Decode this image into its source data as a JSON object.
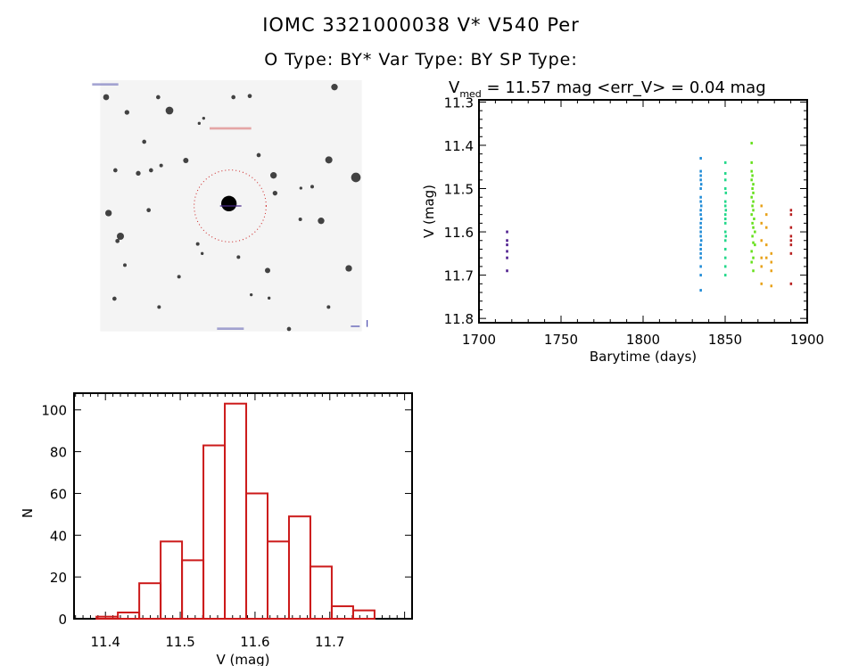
{
  "header": {
    "title": "IOMC 3321000038    V* V540 Per",
    "subtitle": "O Type: BY*  Var Type: BY  SP Type:"
  },
  "image_panel": {
    "target_marker_color": "#cc2222"
  },
  "chart_data": [
    {
      "type": "scatter",
      "title_prefix": "V",
      "title_sub": "med",
      "title_rest": " = 11.57 mag <err_V> = 0.04 mag",
      "xlabel": "Barytime (days)",
      "ylabel": "V (mag)",
      "xlim": [
        1700,
        1900
      ],
      "ylim": [
        11.81,
        11.295
      ],
      "y_inverted": true,
      "xticks": [
        1700,
        1750,
        1800,
        1850,
        1900
      ],
      "yticks": [
        11.3,
        11.4,
        11.5,
        11.6,
        11.7,
        11.8
      ],
      "xtick_labels": [
        "1700",
        "1750",
        "1800",
        "1850",
        "1900"
      ],
      "ytick_labels": [
        "11.3",
        "11.4",
        "11.5",
        "11.6",
        "11.7",
        "11.8"
      ],
      "grid": false,
      "series": [
        {
          "color": "#4b1a8c",
          "points": [
            [
              1717,
              11.6
            ],
            [
              1717,
              11.62
            ],
            [
              1717,
              11.63
            ],
            [
              1717,
              11.645
            ],
            [
              1717,
              11.66
            ],
            [
              1717,
              11.69
            ]
          ]
        },
        {
          "color": "#1e8ad6",
          "points": [
            [
              1835,
              11.43
            ],
            [
              1835,
              11.46
            ],
            [
              1835,
              11.47
            ],
            [
              1835,
              11.48
            ],
            [
              1835.3,
              11.49
            ],
            [
              1835,
              11.5
            ],
            [
              1835,
              11.52
            ],
            [
              1835,
              11.53
            ],
            [
              1835.3,
              11.54
            ],
            [
              1835,
              11.55
            ],
            [
              1835,
              11.56
            ],
            [
              1835.3,
              11.57
            ],
            [
              1835,
              11.58
            ],
            [
              1835,
              11.59
            ],
            [
              1835,
              11.6
            ],
            [
              1835,
              11.61
            ],
            [
              1835.3,
              11.62
            ],
            [
              1835,
              11.63
            ],
            [
              1835,
              11.64
            ],
            [
              1835,
              11.65
            ],
            [
              1835,
              11.66
            ],
            [
              1835,
              11.68
            ],
            [
              1835,
              11.7
            ],
            [
              1835,
              11.735
            ]
          ]
        },
        {
          "color": "#22d88a",
          "points": [
            [
              1850,
              11.44
            ],
            [
              1850,
              11.465
            ],
            [
              1850,
              11.48
            ],
            [
              1850,
              11.5
            ],
            [
              1850.3,
              11.51
            ],
            [
              1850,
              11.53
            ],
            [
              1850,
              11.54
            ],
            [
              1850.3,
              11.55
            ],
            [
              1850,
              11.56
            ],
            [
              1850,
              11.57
            ],
            [
              1850,
              11.58
            ],
            [
              1850,
              11.6
            ],
            [
              1850.3,
              11.61
            ],
            [
              1850,
              11.62
            ],
            [
              1850,
              11.64
            ],
            [
              1850,
              11.66
            ],
            [
              1850,
              11.68
            ],
            [
              1850,
              11.7
            ]
          ]
        },
        {
          "color": "#66e01c",
          "points": [
            [
              1866,
              11.395
            ],
            [
              1866,
              11.44
            ],
            [
              1866,
              11.46
            ],
            [
              1866.5,
              11.47
            ],
            [
              1866,
              11.48
            ],
            [
              1867,
              11.49
            ],
            [
              1866.5,
              11.5
            ],
            [
              1867,
              11.51
            ],
            [
              1866,
              11.52
            ],
            [
              1867,
              11.53
            ],
            [
              1866.5,
              11.54
            ],
            [
              1867,
              11.55
            ],
            [
              1866,
              11.56
            ],
            [
              1867.5,
              11.57
            ],
            [
              1866.5,
              11.58
            ],
            [
              1867,
              11.59
            ],
            [
              1868,
              11.6
            ],
            [
              1866.5,
              11.61
            ],
            [
              1867,
              11.625
            ],
            [
              1868,
              11.63
            ],
            [
              1866,
              11.645
            ],
            [
              1867,
              11.66
            ],
            [
              1866,
              11.67
            ],
            [
              1867,
              11.69
            ]
          ]
        },
        {
          "color": "#e8a21a",
          "points": [
            [
              1872,
              11.54
            ],
            [
              1872,
              11.58
            ],
            [
              1872,
              11.62
            ],
            [
              1872,
              11.66
            ],
            [
              1872,
              11.68
            ],
            [
              1872,
              11.72
            ],
            [
              1875,
              11.56
            ],
            [
              1875,
              11.59
            ],
            [
              1875,
              11.63
            ],
            [
              1875,
              11.66
            ],
            [
              1878,
              11.65
            ],
            [
              1878,
              11.67
            ],
            [
              1878,
              11.69
            ],
            [
              1878,
              11.725
            ]
          ]
        },
        {
          "color": "#b82020",
          "points": [
            [
              1890,
              11.55
            ],
            [
              1890,
              11.56
            ],
            [
              1890,
              11.59
            ],
            [
              1890,
              11.61
            ],
            [
              1890,
              11.62
            ],
            [
              1890,
              11.63
            ],
            [
              1890,
              11.65
            ],
            [
              1890,
              11.72
            ]
          ]
        }
      ]
    },
    {
      "type": "bar",
      "style": "histogram-outline",
      "xlabel": "V (mag)",
      "ylabel": "N",
      "xlim": [
        11.358,
        11.81
      ],
      "ylim": [
        0,
        108
      ],
      "xticks": [
        11.4,
        11.5,
        11.6,
        11.7
      ],
      "yticks": [
        0,
        20,
        40,
        60,
        80,
        100
      ],
      "xtick_labels": [
        "11.4",
        "11.5",
        "11.6",
        "11.7"
      ],
      "ytick_labels": [
        "0",
        "20",
        "40",
        "60",
        "80",
        "100"
      ],
      "bin_start": 11.388,
      "bin_width": 0.0286,
      "values": [
        1,
        3,
        17,
        37,
        28,
        83,
        103,
        60,
        37,
        49,
        25,
        6,
        4
      ],
      "bar_color": "#cc1a1a",
      "grid": false
    }
  ]
}
